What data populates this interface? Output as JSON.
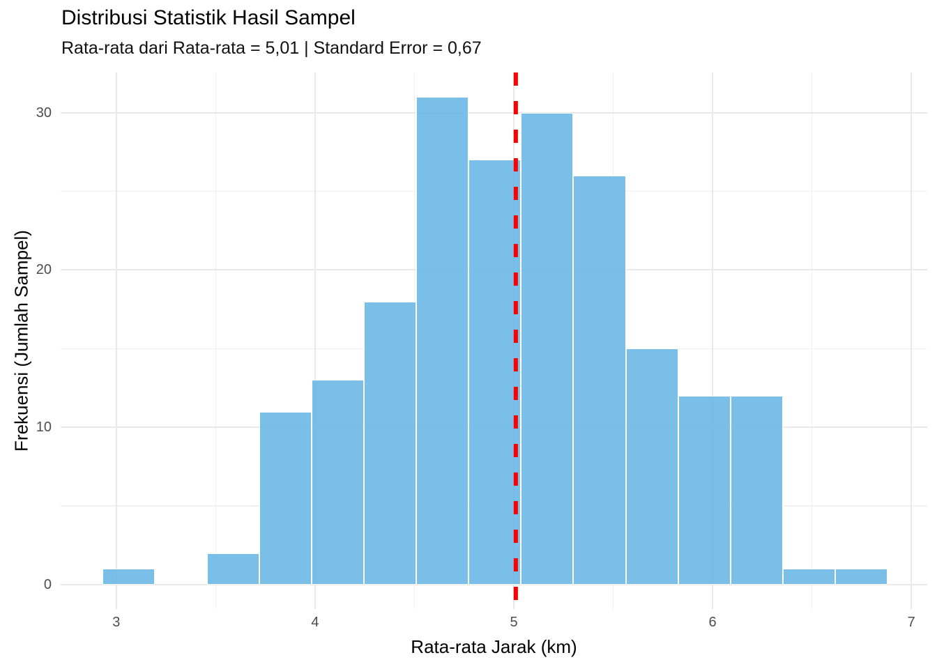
{
  "chart_data": {
    "type": "bar",
    "variant": "histogram",
    "title": "Distribusi Statistik Hasil Sampel",
    "subtitle": "Rata-rata dari Rata-rata = 5,01 | Standard Error = 0,67",
    "xlabel": "Rata-rata Jarak (km)",
    "ylabel": "Frekuensi (Jumlah Sampel)",
    "stats": {
      "mean_of_means": "5,01",
      "standard_error": "0,67"
    },
    "histogram": {
      "bin_start": 2.93,
      "bin_width": 0.2633,
      "frequencies": [
        1,
        0,
        2,
        11,
        13,
        18,
        31,
        27,
        30,
        26,
        15,
        12,
        12,
        1,
        1
      ],
      "total_samples": 200
    },
    "mean_line": {
      "x": 5.01,
      "style": "dashed",
      "color": "#ff0000",
      "width": 6,
      "dash": "19 22"
    },
    "axes": {
      "x_tick_labels": [
        "3",
        "4",
        "5",
        "6",
        "7"
      ],
      "x_tick_values": [
        3,
        4,
        5,
        6,
        7
      ],
      "x_minor_values": [
        3.5,
        4.5,
        5.5,
        6.5
      ],
      "y_tick_labels": [
        "0",
        "10",
        "20",
        "30"
      ],
      "y_tick_values": [
        0,
        10,
        20,
        30
      ],
      "y_minor_values": [
        5,
        15,
        25
      ],
      "xlim": [
        2.72,
        7.08
      ],
      "ylim": [
        -1.55,
        32.55
      ],
      "grid": true,
      "legend": "none"
    },
    "colors": {
      "bar_fill": "#7bbfe8",
      "bar_border": "#ffffff",
      "mean_line": "#ff0000",
      "grid_major": "#e9e9e9",
      "grid_minor": "#f1f1f1",
      "tick_text": "#4d4d4d",
      "text": "#000000",
      "background": "#ffffff"
    }
  }
}
